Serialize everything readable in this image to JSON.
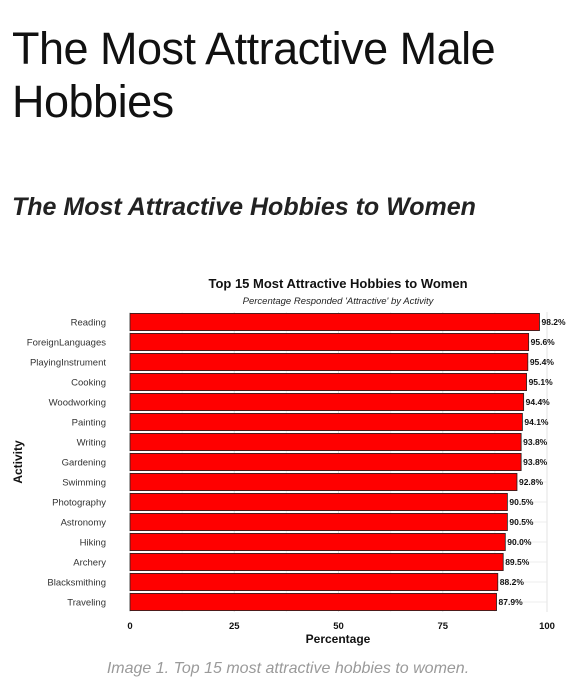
{
  "article": {
    "title": "The Most Attractive Male Hobbies",
    "subtitle": "The Most Attractive Hobbies to Women",
    "caption": "Image 1. Top 15 most attractive hobbies to women."
  },
  "chart_data": {
    "type": "bar",
    "orientation": "horizontal",
    "title": "Top 15 Most Attractive Hobbies to Women",
    "subtitle": "Percentage Responded 'Attractive' by Activity",
    "xlabel": "Percentage",
    "ylabel": "Activity",
    "xlim": [
      0,
      100
    ],
    "xticks": [
      0,
      25,
      50,
      75,
      100
    ],
    "grid": true,
    "bar_color": "#ff0000",
    "categories": [
      "Reading",
      "ForeignLanguages",
      "PlayingInstrument",
      "Cooking",
      "Woodworking",
      "Painting",
      "Writing",
      "Gardening",
      "Swimming",
      "Photography",
      "Astronomy",
      "Hiking",
      "Archery",
      "Blacksmithing",
      "Traveling"
    ],
    "values": [
      98.2,
      95.6,
      95.4,
      95.1,
      94.4,
      94.1,
      93.8,
      93.8,
      92.8,
      90.5,
      90.5,
      90.0,
      89.5,
      88.2,
      87.9
    ],
    "data_labels": [
      "98.2%",
      "95.6%",
      "95.4%",
      "95.1%",
      "94.4%",
      "94.1%",
      "93.8%",
      "93.8%",
      "92.8%",
      "90.5%",
      "90.5%",
      "90.0%",
      "89.5%",
      "88.2%",
      "87.9%"
    ]
  }
}
